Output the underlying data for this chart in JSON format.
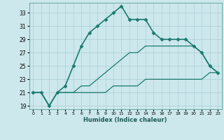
{
  "xlabel": "Humidex (Indice chaleur)",
  "bg_color": "#cce8ec",
  "grid_color": "#aacdd4",
  "line_color": "#1a7a6e",
  "xmin": -0.5,
  "xmax": 23.5,
  "ymin": 18.5,
  "ymax": 34.5,
  "yticks": [
    19,
    21,
    23,
    25,
    27,
    29,
    31,
    33
  ],
  "xticks": [
    0,
    1,
    2,
    3,
    4,
    5,
    6,
    7,
    8,
    9,
    10,
    11,
    12,
    13,
    14,
    15,
    16,
    17,
    18,
    19,
    20,
    21,
    22,
    23
  ],
  "series": [
    {
      "x": [
        0,
        1,
        2,
        3,
        4,
        5,
        6,
        7,
        8,
        9,
        10,
        11,
        12,
        13,
        14,
        15,
        16,
        17,
        18,
        19,
        20,
        21,
        22,
        23
      ],
      "y": [
        21,
        21,
        19,
        21,
        22,
        25,
        28,
        30,
        31,
        32,
        33,
        34,
        32,
        32,
        32,
        30,
        29,
        29,
        29,
        29,
        28,
        27,
        25,
        24
      ],
      "marker": "D",
      "markersize": 2.5,
      "linewidth": 1.2
    },
    {
      "x": [
        0,
        1,
        2,
        3,
        4,
        5,
        6,
        7,
        8,
        9,
        10,
        11,
        12,
        13,
        14,
        15,
        16,
        17,
        18,
        19,
        20,
        21,
        22,
        23
      ],
      "y": [
        21,
        21,
        19,
        21,
        21,
        21,
        22,
        22,
        23,
        24,
        25,
        26,
        27,
        27,
        28,
        28,
        28,
        28,
        28,
        28,
        28,
        27,
        25,
        24
      ],
      "marker": null,
      "markersize": 0,
      "linewidth": 0.9
    },
    {
      "x": [
        0,
        1,
        2,
        3,
        4,
        5,
        6,
        7,
        8,
        9,
        10,
        11,
        12,
        13,
        14,
        15,
        16,
        17,
        18,
        19,
        20,
        21,
        22,
        23
      ],
      "y": [
        21,
        21,
        19,
        21,
        21,
        21,
        21,
        21,
        21,
        21,
        22,
        22,
        22,
        22,
        23,
        23,
        23,
        23,
        23,
        23,
        23,
        23,
        24,
        24
      ],
      "marker": null,
      "markersize": 0,
      "linewidth": 0.9
    }
  ]
}
